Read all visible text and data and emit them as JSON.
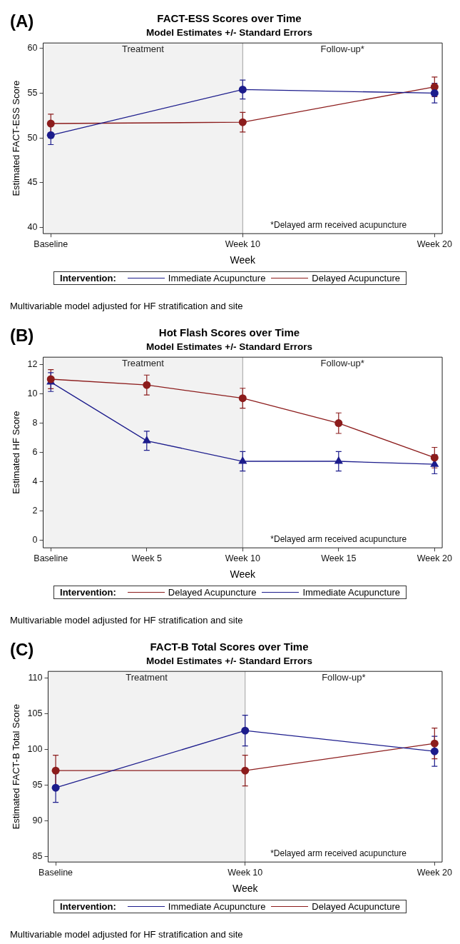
{
  "chart_data": [
    {
      "type": "line",
      "title": "FACT-ESS Scores over Time",
      "subtitle": "Model Estimates +/- Standard Errors",
      "xlabel": "Week",
      "ylabel": "Estimated FACT-ESS Score",
      "legend_title": "Intervention:",
      "legend": "bottom",
      "grid": false,
      "annotations": [
        "(A)",
        "*Delayed arm received acupuncture",
        "Multivariable model adjusted for HF stratification and site"
      ],
      "categories": [
        "Baseline",
        "Week 10",
        "Week 20"
      ],
      "ylim": [
        39.3,
        60.6
      ],
      "yticks": [
        40,
        45,
        50,
        55,
        60
      ],
      "bands": [
        {
          "axis": "x",
          "from": "Baseline",
          "to": "Week 10",
          "label": "Treatment",
          "color": "#f2f2f2"
        },
        {
          "axis": "x",
          "from": "Week 10",
          "to": "Week 20",
          "label": "Follow-up*",
          "color": "#ffffff"
        }
      ],
      "ref_lines": [
        {
          "axis": "x",
          "value": "Week 10",
          "color": "#a0a0a0"
        }
      ],
      "series": [
        {
          "name": "Immediate Acupuncture",
          "color": "#1c1c8c",
          "marker": "circle",
          "values": [
            50.3,
            55.4,
            55.0
          ],
          "errors": [
            1.05,
            1.05,
            1.1
          ]
        },
        {
          "name": "Delayed Acupuncture",
          "color": "#8c1c1c",
          "marker": "circle",
          "values": [
            51.6,
            51.75,
            55.7
          ],
          "errors": [
            1.05,
            1.1,
            1.1
          ]
        }
      ]
    },
    {
      "type": "line",
      "title": "Hot Flash Scores over Time",
      "subtitle": "Model Estimates +/- Standard Errors",
      "xlabel": "Week",
      "ylabel": "Estimated HF Score",
      "legend_title": "Intervention:",
      "legend": "bottom",
      "grid": false,
      "annotations": [
        "(B)",
        "*Delayed arm received acupuncture",
        "Multivariable model adjusted for HF stratification and site"
      ],
      "categories": [
        "Baseline",
        "Week 5",
        "Week 10",
        "Week 15",
        "Week 20"
      ],
      "ylim": [
        -0.5,
        12.5
      ],
      "yticks": [
        0,
        2,
        4,
        6,
        8,
        10,
        12
      ],
      "bands": [
        {
          "axis": "x",
          "from": "Baseline",
          "to": "Week 10",
          "label": "Treatment",
          "color": "#f2f2f2"
        },
        {
          "axis": "x",
          "from": "Week 10",
          "to": "Week 20",
          "label": "Follow-up*",
          "color": "#ffffff"
        }
      ],
      "ref_lines": [
        {
          "axis": "x",
          "value": "Week 10",
          "color": "#a0a0a0"
        }
      ],
      "series": [
        {
          "name": "Delayed Acupuncture",
          "color": "#8c1c1c",
          "marker": "circle",
          "values": [
            11.0,
            10.6,
            9.7,
            8.0,
            5.65
          ],
          "errors": [
            0.65,
            0.68,
            0.68,
            0.7,
            0.7
          ]
        },
        {
          "name": "Immediate Acupuncture",
          "color": "#1c1c8c",
          "marker": "triangle",
          "values": [
            10.8,
            6.8,
            5.4,
            5.4,
            5.2
          ],
          "errors": [
            0.64,
            0.65,
            0.66,
            0.66,
            0.65
          ]
        }
      ]
    },
    {
      "type": "line",
      "title": "FACT-B Total Scores over Time",
      "subtitle": "Model Estimates +/- Standard Errors",
      "xlabel": "Week",
      "ylabel": "Estimated FACT-B Total Score",
      "legend_title": "Intervention:",
      "legend": "bottom",
      "grid": false,
      "annotations": [
        "(C)",
        "*Delayed arm received acupuncture",
        "Multivariable model adjusted for HF stratification and site"
      ],
      "categories": [
        "Baseline",
        "Week 10",
        "Week 20"
      ],
      "ylim": [
        84.2,
        110.9
      ],
      "yticks": [
        85,
        90,
        95,
        100,
        105,
        110
      ],
      "bands": [
        {
          "axis": "x",
          "from": "Baseline",
          "to": "Week 10",
          "label": "Treatment",
          "color": "#f2f2f2"
        },
        {
          "axis": "x",
          "from": "Week 10",
          "to": "Week 20",
          "label": "Follow-up*",
          "color": "#ffffff"
        }
      ],
      "ref_lines": [
        {
          "axis": "x",
          "value": "Week 10",
          "color": "#a0a0a0"
        }
      ],
      "series": [
        {
          "name": "Immediate Acupuncture",
          "color": "#1c1c8c",
          "marker": "circle",
          "values": [
            94.6,
            102.6,
            99.7
          ],
          "errors": [
            2.05,
            2.15,
            2.1
          ]
        },
        {
          "name": "Delayed Acupuncture",
          "color": "#8c1c1c",
          "marker": "circle",
          "values": [
            97.0,
            97.0,
            100.8
          ],
          "errors": [
            2.15,
            2.15,
            2.15
          ]
        }
      ]
    }
  ]
}
